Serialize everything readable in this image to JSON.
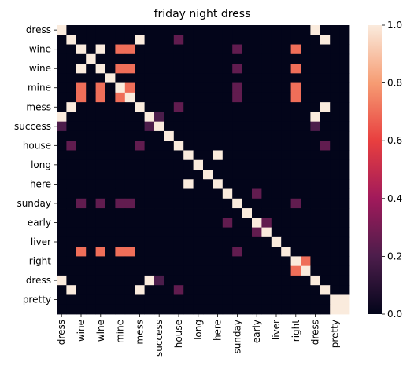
{
  "chart_data": {
    "type": "heatmap",
    "title": "friday night dress",
    "row_labels": [
      "dress",
      "",
      "wine",
      "",
      "wine",
      "",
      "mine",
      "",
      "mess",
      "",
      "success",
      "",
      "house",
      "",
      "long",
      "",
      "here",
      "",
      "sunday",
      "",
      "early",
      "",
      "liver",
      "",
      "right",
      "",
      "dress",
      "",
      "pretty",
      ""
    ],
    "col_labels": [
      "dress",
      "",
      "wine",
      "",
      "wine",
      "",
      "mine",
      "",
      "mess",
      "",
      "success",
      "",
      "house",
      "",
      "long",
      "",
      "here",
      "",
      "sunday",
      "",
      "early",
      "",
      "liver",
      "",
      "right",
      "",
      "dress",
      "",
      "pretty",
      ""
    ],
    "colorbar": {
      "min": 0.0,
      "max": 1.0,
      "ticks": [
        "0.0",
        "0.2",
        "0.4",
        "0.6",
        "0.8",
        "1.0"
      ]
    },
    "colormap": [
      "#03051a",
      "#4c1d4b",
      "#a11a5b",
      "#e83f3f",
      "#f69c73",
      "#faebdd"
    ],
    "values": [
      [
        1,
        0,
        0,
        0,
        0,
        0,
        0,
        0,
        0,
        0,
        0,
        0,
        0,
        0,
        0,
        0,
        0,
        0,
        0,
        0,
        0,
        0,
        0,
        0,
        0,
        0,
        1,
        0,
        0,
        0
      ],
      [
        0,
        1,
        0,
        0,
        0,
        0,
        0,
        0,
        1,
        0,
        0,
        0,
        0.25,
        0,
        0,
        0,
        0,
        0,
        0,
        0,
        0,
        0,
        0,
        0,
        0,
        0,
        0,
        1,
        0,
        0
      ],
      [
        0,
        0,
        1,
        0,
        1,
        0,
        0.7,
        0.7,
        0,
        0,
        0,
        0,
        0,
        0,
        0,
        0,
        0,
        0,
        0.25,
        0,
        0,
        0,
        0,
        0,
        0.7,
        0,
        0,
        0,
        0,
        0
      ],
      [
        0,
        0,
        0,
        1,
        0,
        0,
        0,
        0,
        0,
        0,
        0,
        0,
        0,
        0,
        0,
        0,
        0,
        0,
        0,
        0,
        0,
        0,
        0,
        0,
        0,
        0,
        0,
        0,
        0,
        0
      ],
      [
        0,
        0,
        1,
        0,
        1,
        0,
        0.7,
        0.7,
        0,
        0,
        0,
        0,
        0,
        0,
        0,
        0,
        0,
        0,
        0.25,
        0,
        0,
        0,
        0,
        0,
        0.7,
        0,
        0,
        0,
        0,
        0
      ],
      [
        0,
        0,
        0,
        0,
        0,
        1,
        0,
        0,
        0,
        0,
        0,
        0,
        0,
        0,
        0,
        0,
        0,
        0,
        0,
        0,
        0,
        0,
        0,
        0,
        0,
        0,
        0,
        0,
        0,
        0
      ],
      [
        0,
        0,
        0.7,
        0,
        0.7,
        0,
        1,
        0.7,
        0,
        0,
        0,
        0,
        0,
        0,
        0,
        0,
        0,
        0,
        0.25,
        0,
        0,
        0,
        0,
        0,
        0.7,
        0,
        0,
        0,
        0,
        0
      ],
      [
        0,
        0,
        0.7,
        0,
        0.7,
        0,
        0.7,
        1,
        0,
        0,
        0,
        0,
        0,
        0,
        0,
        0,
        0,
        0,
        0.25,
        0,
        0,
        0,
        0,
        0,
        0.7,
        0,
        0,
        0,
        0,
        0
      ],
      [
        0,
        1,
        0,
        0,
        0,
        0,
        0,
        0,
        1,
        0,
        0,
        0,
        0.25,
        0,
        0,
        0,
        0,
        0,
        0,
        0,
        0,
        0,
        0,
        0,
        0,
        0,
        0,
        1,
        0,
        0
      ],
      [
        1,
        0,
        0,
        0,
        0,
        0,
        0,
        0,
        0,
        1,
        0.2,
        0,
        0,
        0,
        0,
        0,
        0,
        0,
        0,
        0,
        0,
        0,
        0,
        0,
        0,
        0,
        1,
        0,
        0,
        0
      ],
      [
        0.2,
        0,
        0,
        0,
        0,
        0,
        0,
        0,
        0,
        0.2,
        1,
        0,
        0,
        0,
        0,
        0,
        0,
        0,
        0,
        0,
        0,
        0,
        0,
        0,
        0,
        0,
        0.2,
        0,
        0,
        0
      ],
      [
        0,
        0,
        0,
        0,
        0,
        0,
        0,
        0,
        0,
        0,
        0,
        1,
        0,
        0,
        0,
        0,
        0,
        0,
        0,
        0,
        0,
        0,
        0,
        0,
        0,
        0,
        0,
        0,
        0,
        0
      ],
      [
        0,
        0.25,
        0,
        0,
        0,
        0,
        0,
        0,
        0.25,
        0,
        0,
        0,
        1,
        0,
        0,
        0,
        0,
        0,
        0,
        0,
        0,
        0,
        0,
        0,
        0,
        0,
        0,
        0.25,
        0,
        0
      ],
      [
        0,
        0,
        0,
        0,
        0,
        0,
        0,
        0,
        0,
        0,
        0,
        0,
        0,
        1,
        0,
        0,
        1,
        0,
        0,
        0,
        0,
        0,
        0,
        0,
        0,
        0,
        0,
        0,
        0,
        0
      ],
      [
        0,
        0,
        0,
        0,
        0,
        0,
        0,
        0,
        0,
        0,
        0,
        0,
        0,
        0,
        1,
        0,
        0,
        0,
        0,
        0,
        0,
        0,
        0,
        0,
        0,
        0,
        0,
        0,
        0,
        0
      ],
      [
        0,
        0,
        0,
        0,
        0,
        0,
        0,
        0,
        0,
        0,
        0,
        0,
        0,
        0,
        0,
        1,
        0,
        0,
        0,
        0,
        0,
        0,
        0,
        0,
        0,
        0,
        0,
        0,
        0,
        0
      ],
      [
        0,
        0,
        0,
        0,
        0,
        0,
        0,
        0,
        0,
        0,
        0,
        0,
        0,
        1,
        0,
        0,
        1,
        0,
        0,
        0,
        0,
        0,
        0,
        0,
        0,
        0,
        0,
        0,
        0,
        0
      ],
      [
        0,
        0,
        0,
        0,
        0,
        0,
        0,
        0,
        0,
        0,
        0,
        0,
        0,
        0,
        0,
        0,
        0,
        1,
        0,
        0,
        0.25,
        0,
        0,
        0,
        0,
        0,
        0,
        0,
        0,
        0
      ],
      [
        0,
        0,
        0.25,
        0,
        0.25,
        0,
        0.25,
        0.25,
        0,
        0,
        0,
        0,
        0,
        0,
        0,
        0,
        0,
        0,
        1,
        0,
        0,
        0,
        0,
        0,
        0.25,
        0,
        0,
        0,
        0,
        0
      ],
      [
        0,
        0,
        0,
        0,
        0,
        0,
        0,
        0,
        0,
        0,
        0,
        0,
        0,
        0,
        0,
        0,
        0,
        0,
        0,
        1,
        0,
        0,
        0,
        0,
        0,
        0,
        0,
        0,
        0,
        0
      ],
      [
        0,
        0,
        0,
        0,
        0,
        0,
        0,
        0,
        0,
        0,
        0,
        0,
        0,
        0,
        0,
        0,
        0,
        0.25,
        0,
        0,
        1,
        0.25,
        0,
        0,
        0,
        0,
        0,
        0,
        0,
        0
      ],
      [
        0,
        0,
        0,
        0,
        0,
        0,
        0,
        0,
        0,
        0,
        0,
        0,
        0,
        0,
        0,
        0,
        0,
        0,
        0,
        0,
        0.25,
        1,
        0,
        0,
        0,
        0,
        0,
        0,
        0,
        0
      ],
      [
        0,
        0,
        0,
        0,
        0,
        0,
        0,
        0,
        0,
        0,
        0,
        0,
        0,
        0,
        0,
        0,
        0,
        0,
        0,
        0,
        0,
        0,
        1,
        0,
        0,
        0,
        0,
        0,
        0,
        0
      ],
      [
        0,
        0,
        0.7,
        0,
        0.7,
        0,
        0.7,
        0.7,
        0,
        0,
        0,
        0,
        0,
        0,
        0,
        0,
        0,
        0,
        0.25,
        0,
        0,
        0,
        0,
        1,
        0,
        0,
        0,
        0,
        0,
        0
      ],
      [
        0,
        0,
        0,
        0,
        0,
        0,
        0,
        0,
        0,
        0,
        0,
        0,
        0,
        0,
        0,
        0,
        0,
        0,
        0,
        0,
        0,
        0,
        0,
        0,
        1,
        0.7,
        0,
        0,
        0,
        0
      ],
      [
        0,
        0,
        0,
        0,
        0,
        0,
        0,
        0,
        0,
        0,
        0,
        0,
        0,
        0,
        0,
        0,
        0,
        0,
        0,
        0,
        0,
        0,
        0,
        0,
        0.7,
        1,
        0,
        0,
        0,
        0
      ],
      [
        1,
        0,
        0,
        0,
        0,
        0,
        0,
        0,
        0,
        1,
        0.2,
        0,
        0,
        0,
        0,
        0,
        0,
        0,
        0,
        0,
        0,
        0,
        0,
        0,
        0,
        0,
        1,
        0,
        0,
        0
      ],
      [
        0,
        1,
        0,
        0,
        0,
        0,
        0,
        0,
        1,
        0,
        0,
        0,
        0.25,
        0,
        0,
        0,
        0,
        0,
        0,
        0,
        0,
        0,
        0,
        0,
        0,
        0,
        0,
        1,
        0,
        0
      ],
      [
        0,
        0,
        0,
        0,
        0,
        0,
        0,
        0,
        0,
        0,
        0,
        0,
        0,
        0,
        0,
        0,
        0,
        0,
        0,
        0,
        0,
        0,
        0,
        0,
        0,
        0,
        0,
        0,
        1,
        1
      ],
      [
        0,
        0,
        0,
        0,
        0,
        0,
        0,
        0,
        0,
        0,
        0,
        0,
        0,
        0,
        0,
        0,
        0,
        0,
        0,
        0,
        0,
        0,
        0,
        0,
        0,
        0,
        0,
        0,
        1,
        1
      ]
    ]
  }
}
